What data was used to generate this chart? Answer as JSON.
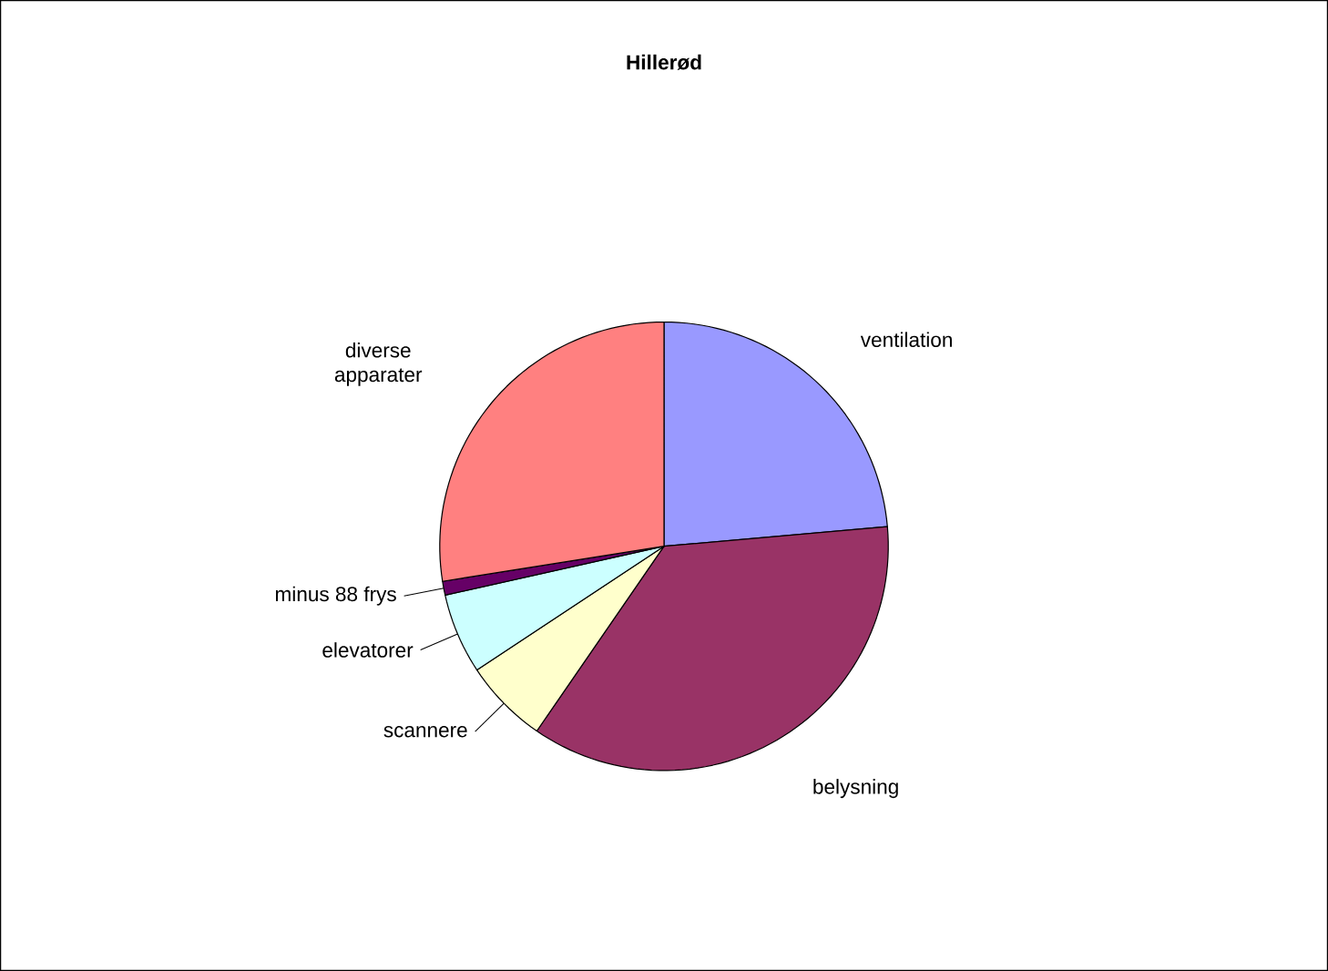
{
  "chart_data": {
    "type": "pie",
    "title": "Hillerød",
    "categories": [
      "ventilation",
      "belysning",
      "scannere",
      "elevatorer",
      "minus 88 frys",
      "diverse apparater"
    ],
    "values": [
      23.6,
      36,
      6.1,
      5.8,
      1,
      27.5
    ],
    "colors": [
      "#9999ff",
      "#993366",
      "#ffffcc",
      "#ccffff",
      "#660066",
      "#ff8080"
    ]
  }
}
